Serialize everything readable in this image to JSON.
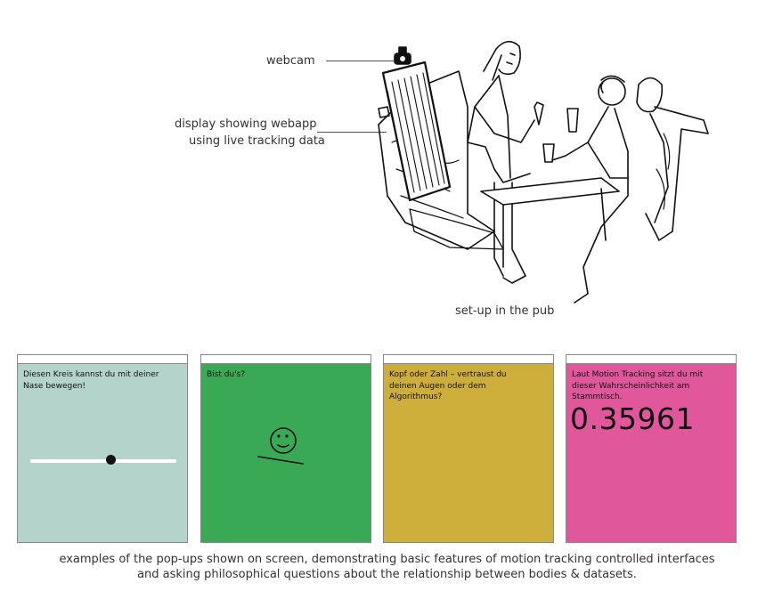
{
  "labels": {
    "webcam": "webcam",
    "display_line1": "display showing webapp",
    "display_line2": "using live tracking data",
    "setup": "set-up in the pub"
  },
  "popups": [
    {
      "color": "#b3d3cb",
      "text": "Diesen Kreis kannst du mit deiner Nase bewegen!",
      "slider_value": 0.55
    },
    {
      "color": "#3aa956",
      "text": "Bist du's?"
    },
    {
      "color": "#cdae3b",
      "text": "Kopf oder Zahl – vertraust du deinen Augen oder dem Algorithmus?"
    },
    {
      "color": "#e1579b",
      "text": "Laut Motion Tracking sitzt du mit dieser Wahrscheinlichkeit am Stammtisch.",
      "value": "0.35961"
    }
  ],
  "caption": {
    "line1": "examples of the pop-ups shown on screen, demonstrating basic features of motion tracking controlled interfaces",
    "line2": "and asking philosophical questions about the relationship between bodies & datasets."
  }
}
